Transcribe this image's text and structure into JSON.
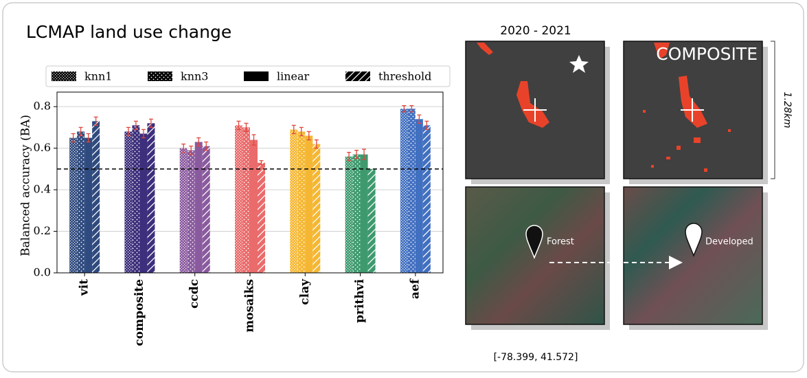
{
  "chart_data": {
    "type": "bar",
    "title": "LCMAP land use change",
    "y_label": "Balanced accuracy (BA)",
    "categories": [
      "vit",
      "composite",
      "ccdc",
      "mosaiks",
      "clay",
      "prithvi",
      "aef"
    ],
    "category_colors": [
      "#2f4a7e",
      "#3d2f7c",
      "#8a5a9e",
      "#ea6b6b",
      "#f5b733",
      "#3e9a6e",
      "#4270c0"
    ],
    "series": [
      {
        "name": "knn1",
        "hatch": "grid",
        "values": [
          0.65,
          0.68,
          0.6,
          0.71,
          0.69,
          0.56,
          0.79
        ],
        "errors": [
          0.02,
          0.02,
          0.02,
          0.02,
          0.02,
          0.02,
          0.015
        ]
      },
      {
        "name": "knn3",
        "hatch": "dots",
        "values": [
          0.68,
          0.71,
          0.59,
          0.7,
          0.68,
          0.57,
          0.79
        ],
        "errors": [
          0.02,
          0.02,
          0.02,
          0.02,
          0.02,
          0.02,
          0.015
        ]
      },
      {
        "name": "linear",
        "hatch": "solid",
        "values": [
          0.65,
          0.67,
          0.63,
          0.64,
          0.66,
          0.57,
          0.74
        ],
        "errors": [
          0.02,
          0.02,
          0.02,
          0.025,
          0.02,
          0.025,
          0.02
        ]
      },
      {
        "name": "threshold",
        "hatch": "diagonal",
        "values": [
          0.73,
          0.72,
          0.61,
          0.53,
          0.62,
          0.5,
          0.71
        ],
        "errors": [
          0.02,
          0.02,
          0.02,
          0.01,
          0.02,
          null,
          0.02
        ]
      }
    ],
    "error_color": "#e0463c",
    "hline": 0.5,
    "ylim": [
      0,
      0.87
    ],
    "yticks": [
      {
        "value": 0,
        "label": "0.0"
      },
      0.2,
      0.4,
      0.6,
      0.8
    ],
    "grid": true,
    "legend": "top"
  },
  "panels": {
    "date": "2020 - 2021",
    "composite_label": "COMPOSITE",
    "scale": "1.28km",
    "from_label": "Forest",
    "to_label": "Developed",
    "coords": "[-78.399, 41.572]"
  }
}
